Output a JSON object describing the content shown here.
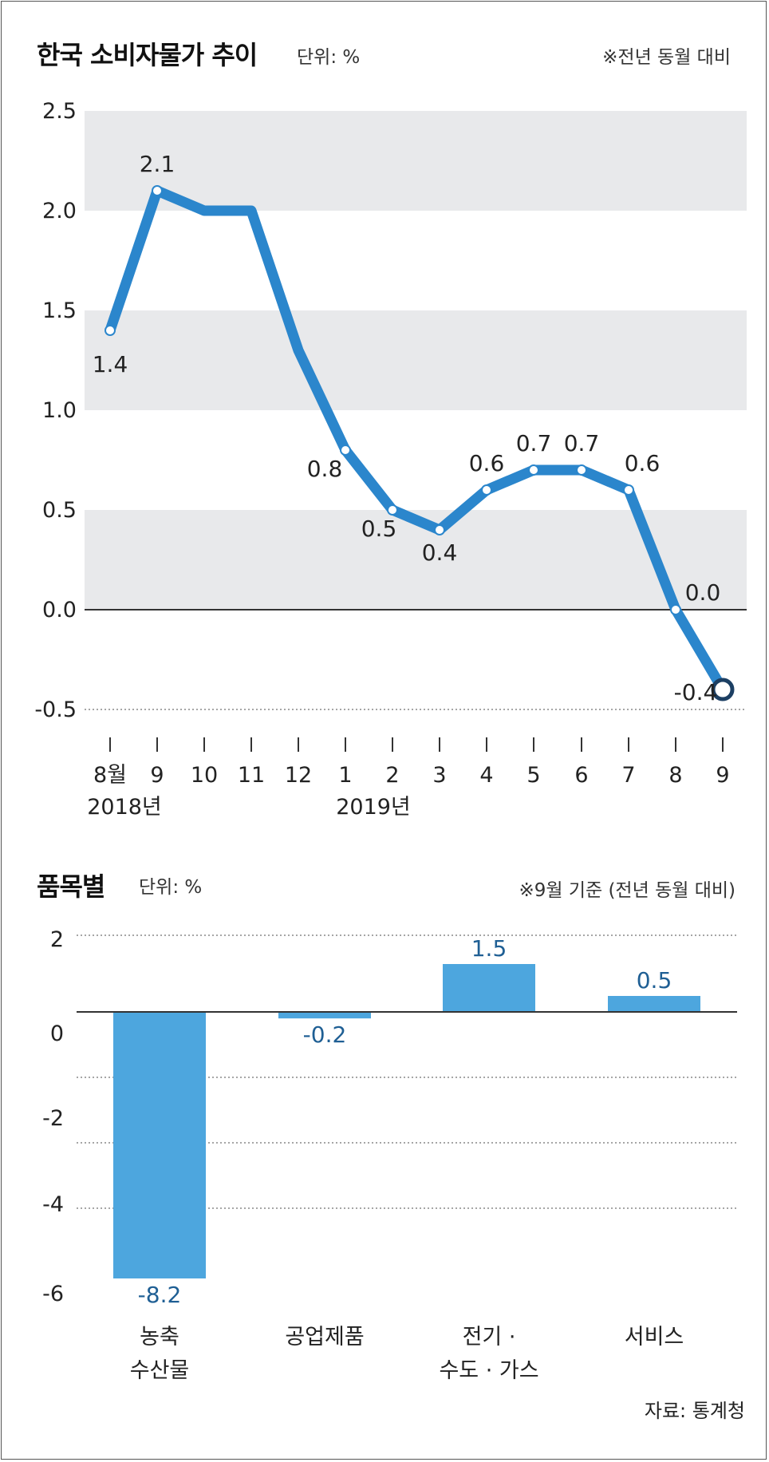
{
  "line_panel": {
    "title": "한국 소비자물가 추이",
    "unit": "단위: %",
    "note": "※전년 동월 대비",
    "year_labels": [
      "2018년",
      "2019년"
    ]
  },
  "bar_panel": {
    "title": "품목별",
    "unit": "단위: %",
    "note": "※9월 기준 (전년 동월 대비)"
  },
  "source": "자료: 통계청",
  "colors": {
    "line": "#2b86cc",
    "bar": "#4da6de",
    "band": "#e8e9eb",
    "bar_label": "#1f5f94",
    "text": "#222222"
  },
  "chart_data": [
    {
      "type": "line",
      "title": "한국 소비자물가 추이",
      "ylim": [
        -0.5,
        2.5
      ],
      "yticks": [
        "2.5",
        "2.0",
        "1.5",
        "1.0",
        "0.5",
        "0.0",
        "-0.5"
      ],
      "categories": [
        "8월",
        "9",
        "10",
        "11",
        "12",
        "1",
        "2",
        "3",
        "4",
        "5",
        "6",
        "7",
        "8",
        "9"
      ],
      "values": [
        1.4,
        2.1,
        2.0,
        2.0,
        1.3,
        0.8,
        0.5,
        0.4,
        0.6,
        0.7,
        0.7,
        0.6,
        0.0,
        -0.4
      ],
      "data_labels": [
        "1.4",
        "2.1",
        "",
        "",
        "",
        "0.8",
        "0.5",
        "0.4",
        "0.6",
        "0.7",
        "0.7",
        "0.6",
        "0.0",
        "-0.4"
      ],
      "grid": "alternating bands",
      "zero_line": true
    },
    {
      "type": "bar",
      "title": "품목별",
      "ylim": [
        -6,
        2
      ],
      "yticks": [
        "2",
        "0",
        "-2",
        "-4",
        "-6"
      ],
      "categories": [
        [
          "농축",
          "수산물"
        ],
        [
          "공업제품"
        ],
        [
          "전기 ·",
          "수도 · 가스"
        ],
        [
          "서비스"
        ]
      ],
      "values": [
        -8.2,
        -0.2,
        1.5,
        0.5
      ],
      "data_labels": [
        "-8.2",
        "-0.2",
        "1.5",
        "0.5"
      ],
      "grid": "dotted horizontal"
    }
  ]
}
